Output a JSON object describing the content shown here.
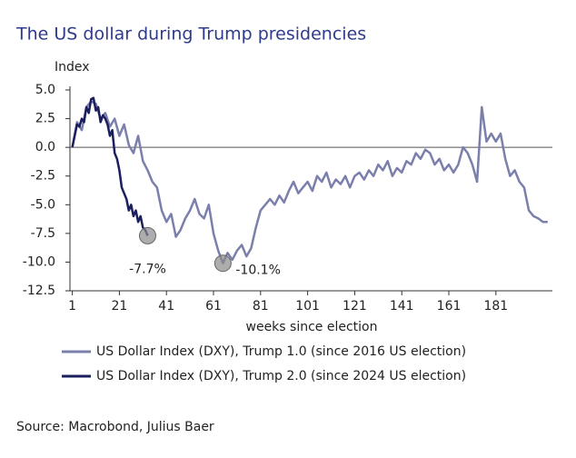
{
  "chart_data": {
    "type": "line",
    "title": "The US dollar during Trump presidencies",
    "y_label": "Index",
    "x_label": "weeks since election",
    "source": "Source: Macrobond, Julius Baer",
    "xlim": [
      0,
      205
    ],
    "ylim": [
      -12.5,
      5
    ],
    "xticks": [
      1,
      21,
      41,
      61,
      81,
      101,
      121,
      141,
      161,
      181
    ],
    "yticks": [
      {
        "value": 5,
        "label": "5.0"
      },
      2.5,
      {
        "value": 0,
        "label": "0.0"
      },
      -2.5,
      {
        "value": -5,
        "label": "-5.0"
      },
      -7.5,
      {
        "value": -10,
        "label": "-10.0"
      },
      -12.5
    ],
    "zero_line": true,
    "series": [
      {
        "name": "US Dollar Index (DXY), Trump 1.0 (since 2016 US election)",
        "color": "#7b7fab",
        "x": [
          1,
          3,
          5,
          7,
          9,
          11,
          13,
          15,
          17,
          19,
          21,
          23,
          25,
          27,
          29,
          31,
          33,
          35,
          37,
          39,
          41,
          43,
          45,
          47,
          49,
          51,
          53,
          55,
          57,
          59,
          61,
          63,
          65,
          67,
          69,
          71,
          73,
          75,
          77,
          79,
          81,
          83,
          85,
          87,
          89,
          91,
          93,
          95,
          97,
          99,
          101,
          103,
          105,
          107,
          109,
          111,
          113,
          115,
          117,
          119,
          121,
          123,
          125,
          127,
          129,
          131,
          133,
          135,
          137,
          139,
          141,
          143,
          145,
          147,
          149,
          151,
          153,
          155,
          157,
          159,
          161,
          163,
          165,
          167,
          169,
          171,
          173,
          175,
          177,
          179,
          181,
          183,
          185,
          187,
          189,
          191,
          193,
          195,
          197,
          199,
          201,
          203
        ],
        "values": [
          0,
          2.2,
          1.5,
          3.5,
          4,
          3.8,
          2.5,
          3,
          1.8,
          2.5,
          1,
          2,
          0.2,
          -0.5,
          1,
          -1.2,
          -2,
          -3,
          -3.5,
          -5.5,
          -6.5,
          -5.8,
          -7.8,
          -7.2,
          -6.2,
          -5.5,
          -4.5,
          -5.8,
          -6.2,
          -5,
          -7.5,
          -9,
          -10.1,
          -9.2,
          -9.8,
          -9,
          -8.5,
          -9.5,
          -8.8,
          -7,
          -5.5,
          -5,
          -4.5,
          -5,
          -4.2,
          -4.8,
          -3.8,
          -3,
          -4,
          -3.5,
          -3,
          -3.8,
          -2.5,
          -3,
          -2.2,
          -3.5,
          -2.8,
          -3.2,
          -2.5,
          -3.5,
          -2.5,
          -2.2,
          -2.8,
          -2,
          -2.5,
          -1.5,
          -2,
          -1.2,
          -2.5,
          -1.8,
          -2.2,
          -1.2,
          -1.5,
          -0.5,
          -1,
          -0.2,
          -0.5,
          -1.5,
          -1,
          -2,
          -1.5,
          -2.2,
          -1.5,
          0,
          -0.5,
          -1.5,
          -3,
          3.5,
          0.5,
          1.2,
          0.5,
          1.2,
          -1,
          -2.5,
          -2,
          -3,
          -3.5,
          -5.5,
          -6,
          -6.2,
          -6.5,
          -6.5
        ]
      },
      {
        "name": "US Dollar Index (DXY), Trump 2.0 (since 2024 US election)",
        "color": "#1b1f5e",
        "x": [
          1,
          2,
          3,
          4,
          5,
          6,
          7,
          8,
          9,
          10,
          11,
          12,
          13,
          14,
          15,
          16,
          17,
          18,
          19,
          20,
          21,
          22,
          23,
          24,
          25,
          26,
          27,
          28,
          29,
          30,
          31,
          32,
          33
        ],
        "values": [
          0,
          1,
          2,
          1.8,
          2.5,
          2.2,
          3.5,
          3,
          4.2,
          4.3,
          3.2,
          3.5,
          2.2,
          2.8,
          2.5,
          2,
          1,
          1.5,
          -0.5,
          -1,
          -2,
          -3.5,
          -4,
          -4.5,
          -5.5,
          -5,
          -6,
          -5.5,
          -6.5,
          -6,
          -7,
          -7.2,
          -7.7
        ]
      }
    ],
    "annotations": [
      {
        "x": 33,
        "y": -7.7,
        "label": "-7.7%"
      },
      {
        "x": 65,
        "y": -10.1,
        "label": "-10.1%"
      }
    ]
  }
}
